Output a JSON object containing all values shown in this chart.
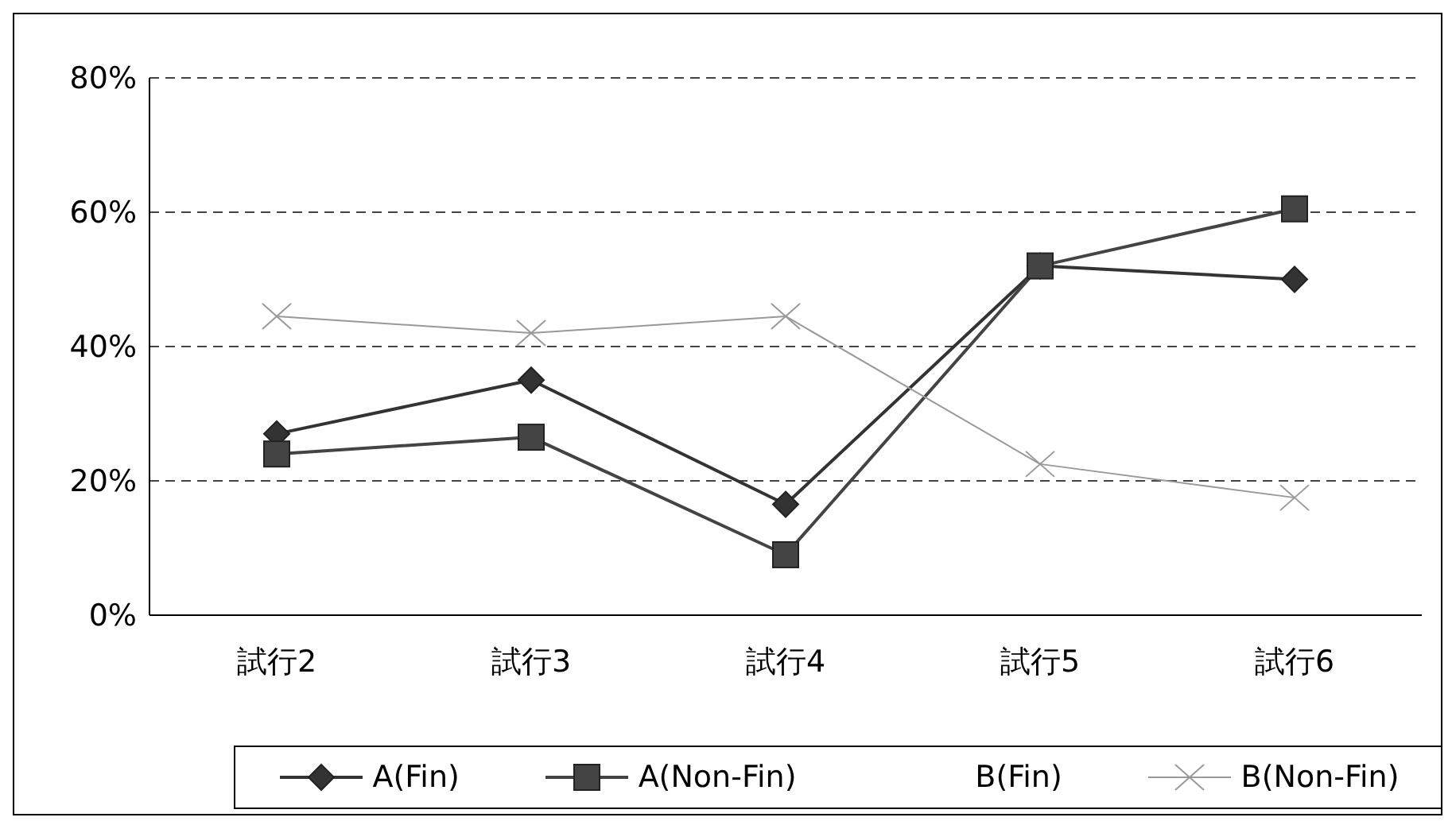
{
  "chart_data": {
    "type": "line",
    "categories": [
      "試行2",
      "試行3",
      "試行4",
      "試行5",
      "試行6"
    ],
    "series": [
      {
        "name": "A(Fin)",
        "color": "#333333",
        "marker": "diamond",
        "values": [
          27,
          35,
          16.5,
          52,
          50
        ]
      },
      {
        "name": "A(Non-Fin)",
        "color": "#444444",
        "marker": "square",
        "values": [
          24,
          26.5,
          9,
          52,
          60.5
        ]
      },
      {
        "name": "B(Fin)",
        "marker": "none",
        "values": [
          null,
          null,
          null,
          null,
          null
        ]
      },
      {
        "name": "B(Non-Fin)",
        "color": "#999999",
        "marker": "cross",
        "values": [
          44.5,
          42,
          44.5,
          22.5,
          17.5
        ]
      }
    ],
    "ylim": [
      0,
      80
    ],
    "yticks": [
      {
        "value": 0,
        "label": "0%"
      },
      {
        "value": 20,
        "label": "20%"
      },
      {
        "value": 40,
        "label": "40%"
      },
      {
        "value": 60,
        "label": "60%"
      },
      {
        "value": 80,
        "label": "80%"
      }
    ],
    "grid": "y",
    "legend": "bottom",
    "line_style": "solid"
  }
}
